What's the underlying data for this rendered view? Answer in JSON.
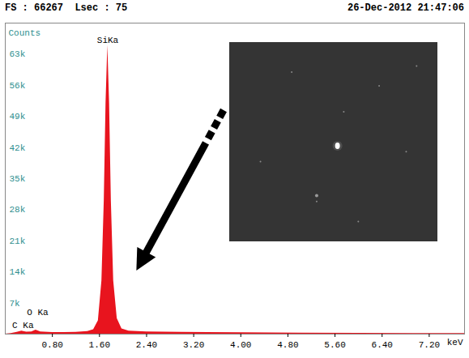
{
  "chart_data": {
    "type": "area",
    "title": "FS : 66267  Lsec : 75",
    "subtitle": "26-Dec-2012 21:47:06",
    "x_label": "keV",
    "y_label": "Counts",
    "color": "#e8141e",
    "x": [
      0.0,
      0.1,
      0.2,
      0.28,
      0.36,
      0.45,
      0.52,
      0.6,
      0.8,
      1.0,
      1.2,
      1.4,
      1.5,
      1.58,
      1.64,
      1.68,
      1.71,
      1.74,
      1.77,
      1.8,
      1.84,
      1.9,
      1.98,
      2.1,
      2.4,
      3.0,
      4.0,
      5.0,
      6.0,
      7.0,
      7.8
    ],
    "values": [
      0,
      150,
      400,
      700,
      450,
      500,
      900,
      500,
      350,
      350,
      400,
      600,
      1000,
      3000,
      12000,
      30000,
      52000,
      65000,
      52000,
      30000,
      12000,
      3500,
      1200,
      700,
      500,
      400,
      300,
      250,
      200,
      150,
      120
    ],
    "xlim": [
      0,
      7.8
    ],
    "ylim": [
      0,
      70000
    ],
    "xticks": [
      {
        "value": 0.8,
        "label": "0.80"
      },
      {
        "value": 1.6,
        "label": "1.60"
      },
      {
        "value": 2.4,
        "label": "2.40"
      },
      {
        "value": 3.2,
        "label": "3.20"
      },
      {
        "value": 4,
        "label": "4.00"
      },
      {
        "value": 4.8,
        "label": "4.80"
      },
      {
        "value": 5.6,
        "label": "5.60"
      },
      {
        "value": 6.4,
        "label": "6.40"
      },
      {
        "value": 7.2,
        "label": "7.20"
      }
    ],
    "yticks": [
      {
        "value": 7000,
        "label": "7k"
      },
      {
        "value": 14000,
        "label": "14k"
      },
      {
        "value": 21000,
        "label": "21k"
      },
      {
        "value": 28000,
        "label": "28k"
      },
      {
        "value": 35000,
        "label": "35k"
      },
      {
        "value": 42000,
        "label": "42k"
      },
      {
        "value": 49000,
        "label": "49k"
      },
      {
        "value": 56000,
        "label": "56k"
      },
      {
        "value": 63000,
        "label": "63k"
      }
    ],
    "annotations": [
      {
        "text": "SiKa",
        "x": 1.74,
        "y": 65500
      },
      {
        "text": "O Ka",
        "x": 0.55,
        "y": 4200
      },
      {
        "text": "C Ka",
        "x": 0.3,
        "y": 1400
      }
    ]
  }
}
